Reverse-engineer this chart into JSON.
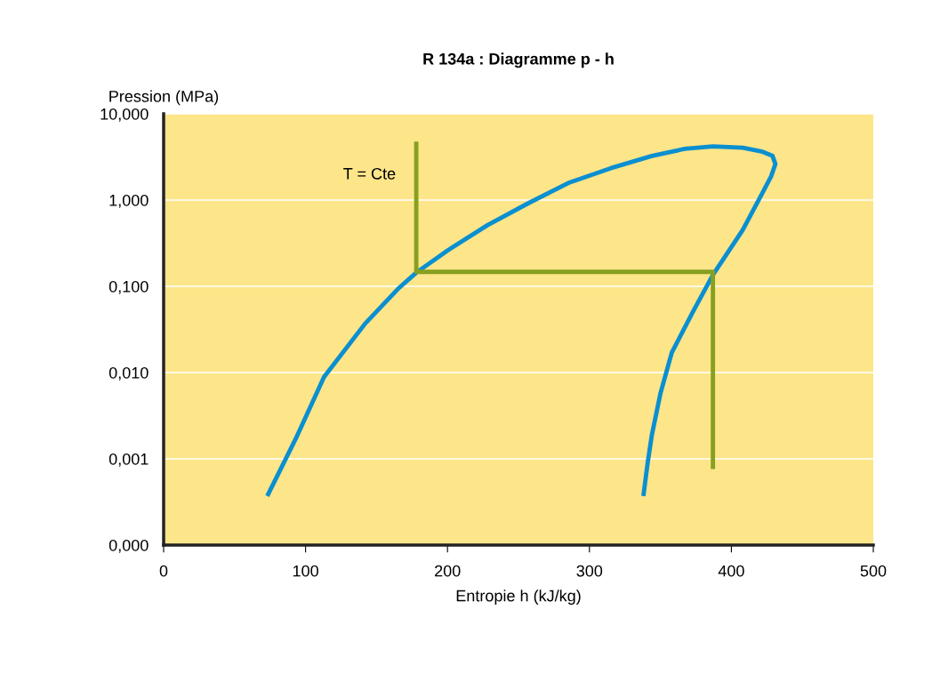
{
  "chart_data": {
    "type": "line",
    "title": "R 134a : Diagramme p - h",
    "xlabel": "Entropie h (kJ/kg)",
    "ylabel": "Pression (MPa)",
    "series": [
      {
        "color": "#0a8fd0",
        "x": [
          73,
          93,
          113,
          142,
          165,
          178,
          200,
          228,
          257,
          286,
          315,
          344,
          367,
          387,
          408,
          422,
          429,
          431,
          428,
          422,
          408,
          387,
          373,
          358,
          350,
          344,
          341,
          338
        ],
        "values": [
          0.00037,
          0.0017,
          0.0089,
          0.037,
          0.093,
          0.144,
          0.26,
          0.51,
          0.92,
          1.6,
          2.34,
          3.25,
          3.92,
          4.19,
          4.05,
          3.63,
          3.25,
          2.62,
          1.88,
          1.22,
          0.45,
          0.136,
          0.051,
          0.017,
          0.0057,
          0.0019,
          0.00089,
          0.00037
        ]
      },
      {
        "color": "#86a020",
        "x": [
          178,
          178,
          387,
          387
        ],
        "values": [
          4.77,
          0.147,
          0.147,
          0.00076
        ]
      }
    ],
    "xlim": [
      0,
      500
    ],
    "xticks": [
      0,
      100,
      200,
      300,
      400,
      500
    ],
    "log": "y",
    "ylim": [
      0.0001,
      10
    ],
    "yticks": [
      {
        "value": 0.0001,
        "label": "0,000"
      },
      {
        "value": 0.001,
        "label": "0,001"
      },
      {
        "value": 0.01,
        "label": "0,010"
      },
      {
        "value": 0.1,
        "label": "0,100"
      },
      {
        "value": 1,
        "label": "1,000"
      },
      {
        "value": 10,
        "label": "10,000"
      }
    ],
    "grid": "y",
    "annotations": [
      "T = Cte"
    ]
  }
}
